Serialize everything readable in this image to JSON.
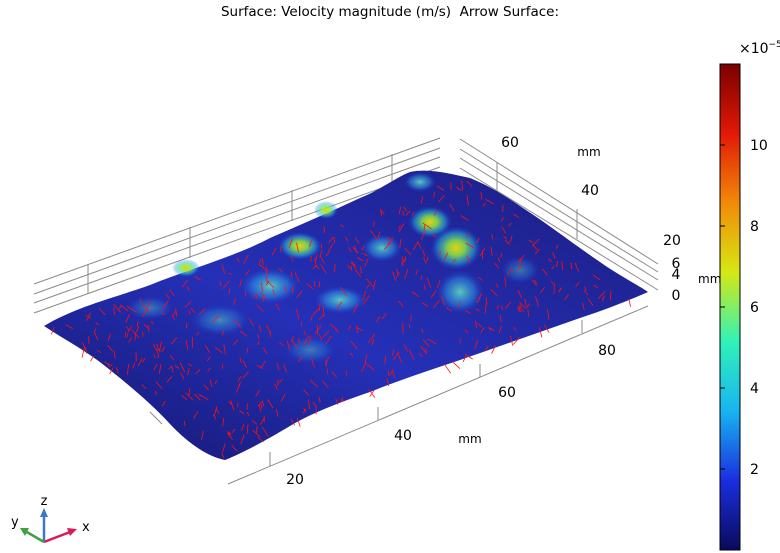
{
  "title": "Surface: Velocity magnitude (m/s)  Arrow Surface:",
  "chart_data": {
    "type": "surface",
    "title": "Surface: Velocity magnitude (m/s)  Arrow Surface:",
    "x_axis": {
      "unit": "mm",
      "ticks": [
        "20",
        "40",
        "60",
        "80"
      ]
    },
    "y_axis": {
      "unit": "mm",
      "ticks": [
        "40",
        "60"
      ]
    },
    "z_axis": {
      "unit": "mm",
      "ticks": [
        "0",
        "4",
        "6",
        "20"
      ]
    },
    "colorbar": {
      "multiplier": "×10",
      "exponent": "−5",
      "ticks": [
        "2",
        "4",
        "6",
        "8",
        "10"
      ],
      "range": [
        0,
        12
      ],
      "colormap": "rainbow",
      "stops": [
        "#0a0a5a",
        "#1a2ee0",
        "#18b4f0",
        "#30f2b8",
        "#d6e814",
        "#f28a08",
        "#e21806",
        "#7a0000"
      ]
    },
    "grid": true,
    "arrows": {
      "color": "#ff0000"
    },
    "triad": {
      "x": "x",
      "y": "y",
      "z": "z"
    }
  }
}
